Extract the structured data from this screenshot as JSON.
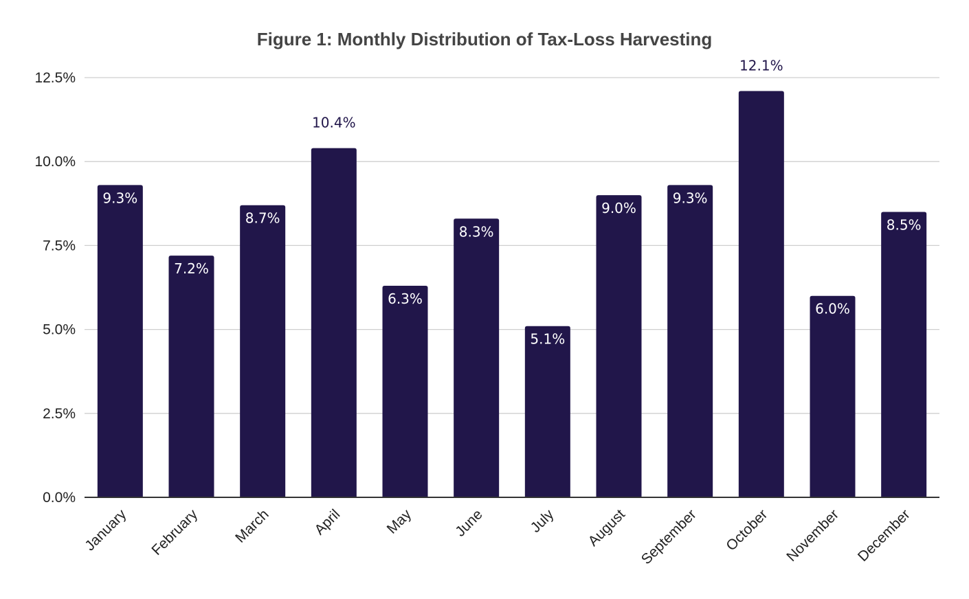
{
  "chart_data": {
    "type": "bar",
    "title": "Figure 1: Monthly Distribution of Tax-Loss Harvesting",
    "xlabel": "",
    "ylabel": "",
    "categories": [
      "January",
      "February",
      "March",
      "April",
      "May",
      "June",
      "July",
      "August",
      "September",
      "October",
      "November",
      "December"
    ],
    "values": [
      9.3,
      7.2,
      8.7,
      10.4,
      6.3,
      8.3,
      5.1,
      9.0,
      9.3,
      12.1,
      6.0,
      8.5
    ],
    "data_labels": [
      "9.3%",
      "7.2%",
      "8.7%",
      "10.4%",
      "6.3%",
      "8.3%",
      "5.1%",
      "9.0%",
      "9.3%",
      "12.1%",
      "6.0%",
      "8.5%"
    ],
    "ylim": [
      0,
      12.5
    ],
    "yticks": [
      0,
      2.5,
      5,
      7.5,
      10,
      12.5
    ],
    "ytick_labels": [
      "0.0%",
      "2.5%",
      "5.0%",
      "7.5%",
      "10.0%",
      "12.5%"
    ],
    "grid": true,
    "legend": "none",
    "bar_color": "#21164a",
    "outside_label_color": "#21164a",
    "inside_label_color": "#ffffff"
  }
}
